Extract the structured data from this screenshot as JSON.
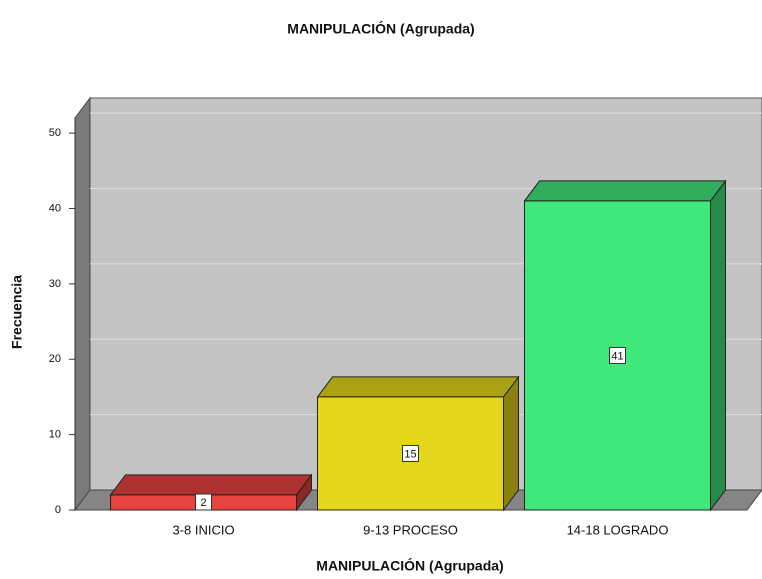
{
  "chart_data": {
    "type": "bar3d",
    "title": "MANIPULACIÓN (Agrupada)",
    "x_label": "MANIPULACIÓN (Agrupada)",
    "y_label": "Frecuencia",
    "categories": [
      "3-8 INICIO",
      "9-13 PROCESO",
      "14-18 LOGRADO"
    ],
    "values": [
      2,
      15,
      41
    ],
    "colors": [
      "#e8433e",
      "#e4d61c",
      "#40e87c"
    ],
    "ylim": [
      0,
      52
    ],
    "yticks": [
      0,
      10,
      20,
      30,
      40,
      50
    ],
    "grid": true
  }
}
